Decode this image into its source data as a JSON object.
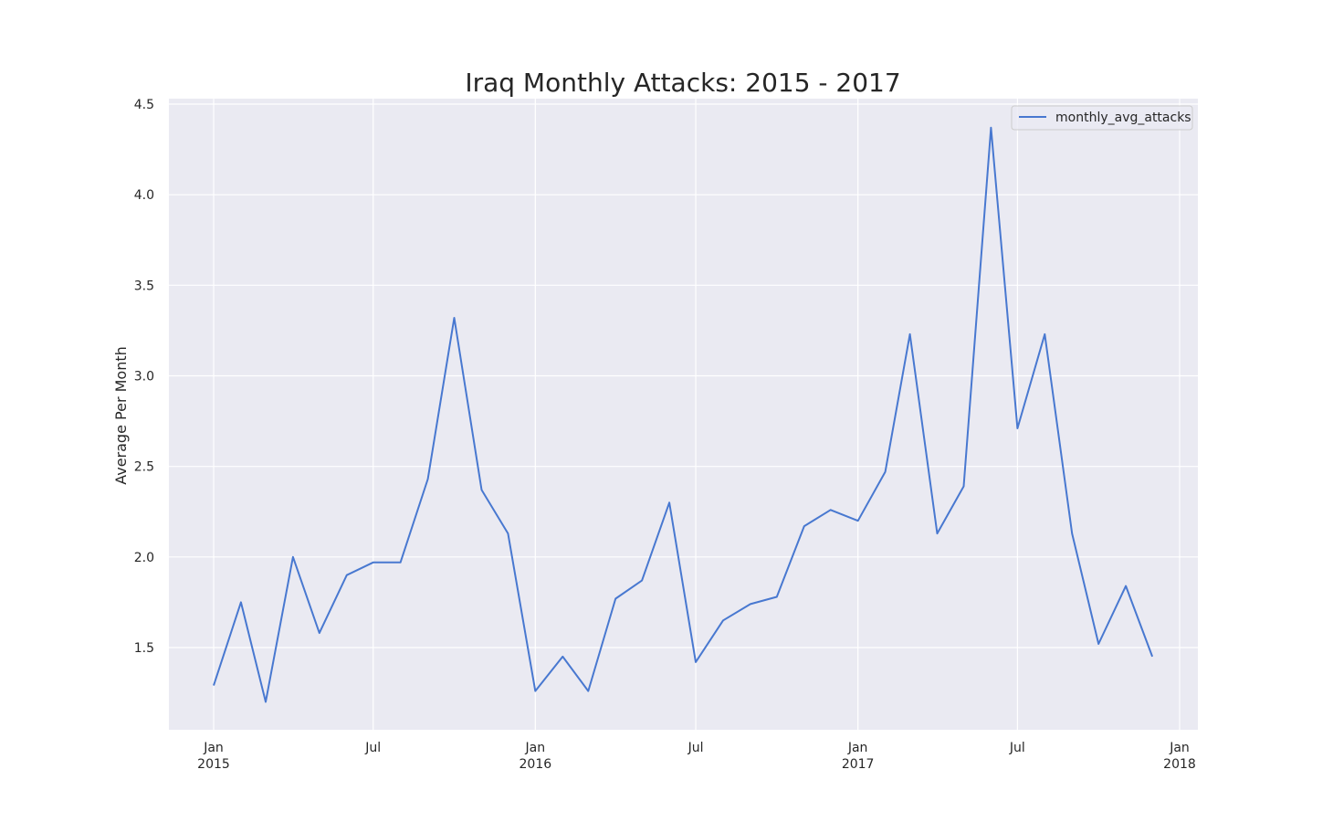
{
  "chart_data": {
    "type": "line",
    "title": "Iraq Monthly Attacks: 2015 - 2017",
    "xlabel": "",
    "ylabel": "Average Per Month",
    "ylim": [
      1.0,
      4.5
    ],
    "y_ticks": [
      "1.5",
      "2.0",
      "2.5",
      "3.0",
      "3.5",
      "4.0",
      "4.5"
    ],
    "x_ticks": [
      {
        "date": "2015-01-01",
        "line1": "Jan",
        "line2": "2015"
      },
      {
        "date": "2015-07-01",
        "line1": "Jul",
        "line2": ""
      },
      {
        "date": "2016-01-01",
        "line1": "Jan",
        "line2": "2016"
      },
      {
        "date": "2016-07-01",
        "line1": "Jul",
        "line2": ""
      },
      {
        "date": "2017-01-01",
        "line1": "Jan",
        "line2": "2017"
      },
      {
        "date": "2017-07-01",
        "line1": "Jul",
        "line2": ""
      },
      {
        "date": "2018-01-01",
        "line1": "Jan",
        "line2": "2018"
      }
    ],
    "grid": true,
    "legend": "top-right",
    "series": [
      {
        "name": "monthly_avg_attacks",
        "color": "#4878d0",
        "x": [
          "2015-01",
          "2015-02",
          "2015-03",
          "2015-04",
          "2015-05",
          "2015-06",
          "2015-07",
          "2015-08",
          "2015-09",
          "2015-10",
          "2015-11",
          "2015-12",
          "2016-01",
          "2016-02",
          "2016-03",
          "2016-04",
          "2016-05",
          "2016-06",
          "2016-07",
          "2016-08",
          "2016-09",
          "2016-10",
          "2016-11",
          "2016-12",
          "2017-01",
          "2017-02",
          "2017-03",
          "2017-04",
          "2017-05",
          "2017-06",
          "2017-07",
          "2017-08",
          "2017-09",
          "2017-10",
          "2017-11",
          "2017-12"
        ],
        "values": [
          1.29,
          1.75,
          1.2,
          2.0,
          1.58,
          1.9,
          1.97,
          1.97,
          2.43,
          3.32,
          2.37,
          2.13,
          1.26,
          1.45,
          1.26,
          1.77,
          1.87,
          2.3,
          1.42,
          1.65,
          1.74,
          1.78,
          2.17,
          2.26,
          2.2,
          2.47,
          3.23,
          2.13,
          2.39,
          4.37,
          2.71,
          3.23,
          2.13,
          1.52,
          1.84,
          1.45
        ]
      }
    ]
  },
  "colors": {
    "plot_background": "#eaeaf2",
    "grid": "#ffffff",
    "text": "#262626"
  }
}
